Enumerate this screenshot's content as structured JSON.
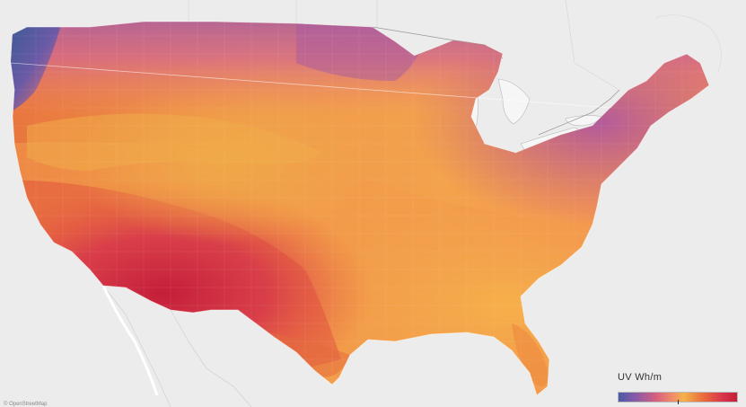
{
  "map": {
    "view": "contiguous-united-states",
    "metric": "uv-index-choropleth",
    "colors": {
      "background": "#ededed",
      "land": "#e6e6e6",
      "water": "#f7f7f7",
      "border": "#ffffff"
    }
  },
  "legend": {
    "title": "UV  Wh/m",
    "gradient": [
      "#4a5aa8",
      "#8a5aa6",
      "#d8607f",
      "#f08a6a",
      "#f4b24a",
      "#e86a3e",
      "#d8344c",
      "#c41e3a"
    ]
  },
  "attribution": {
    "text": "© OpenStreetMap"
  }
}
